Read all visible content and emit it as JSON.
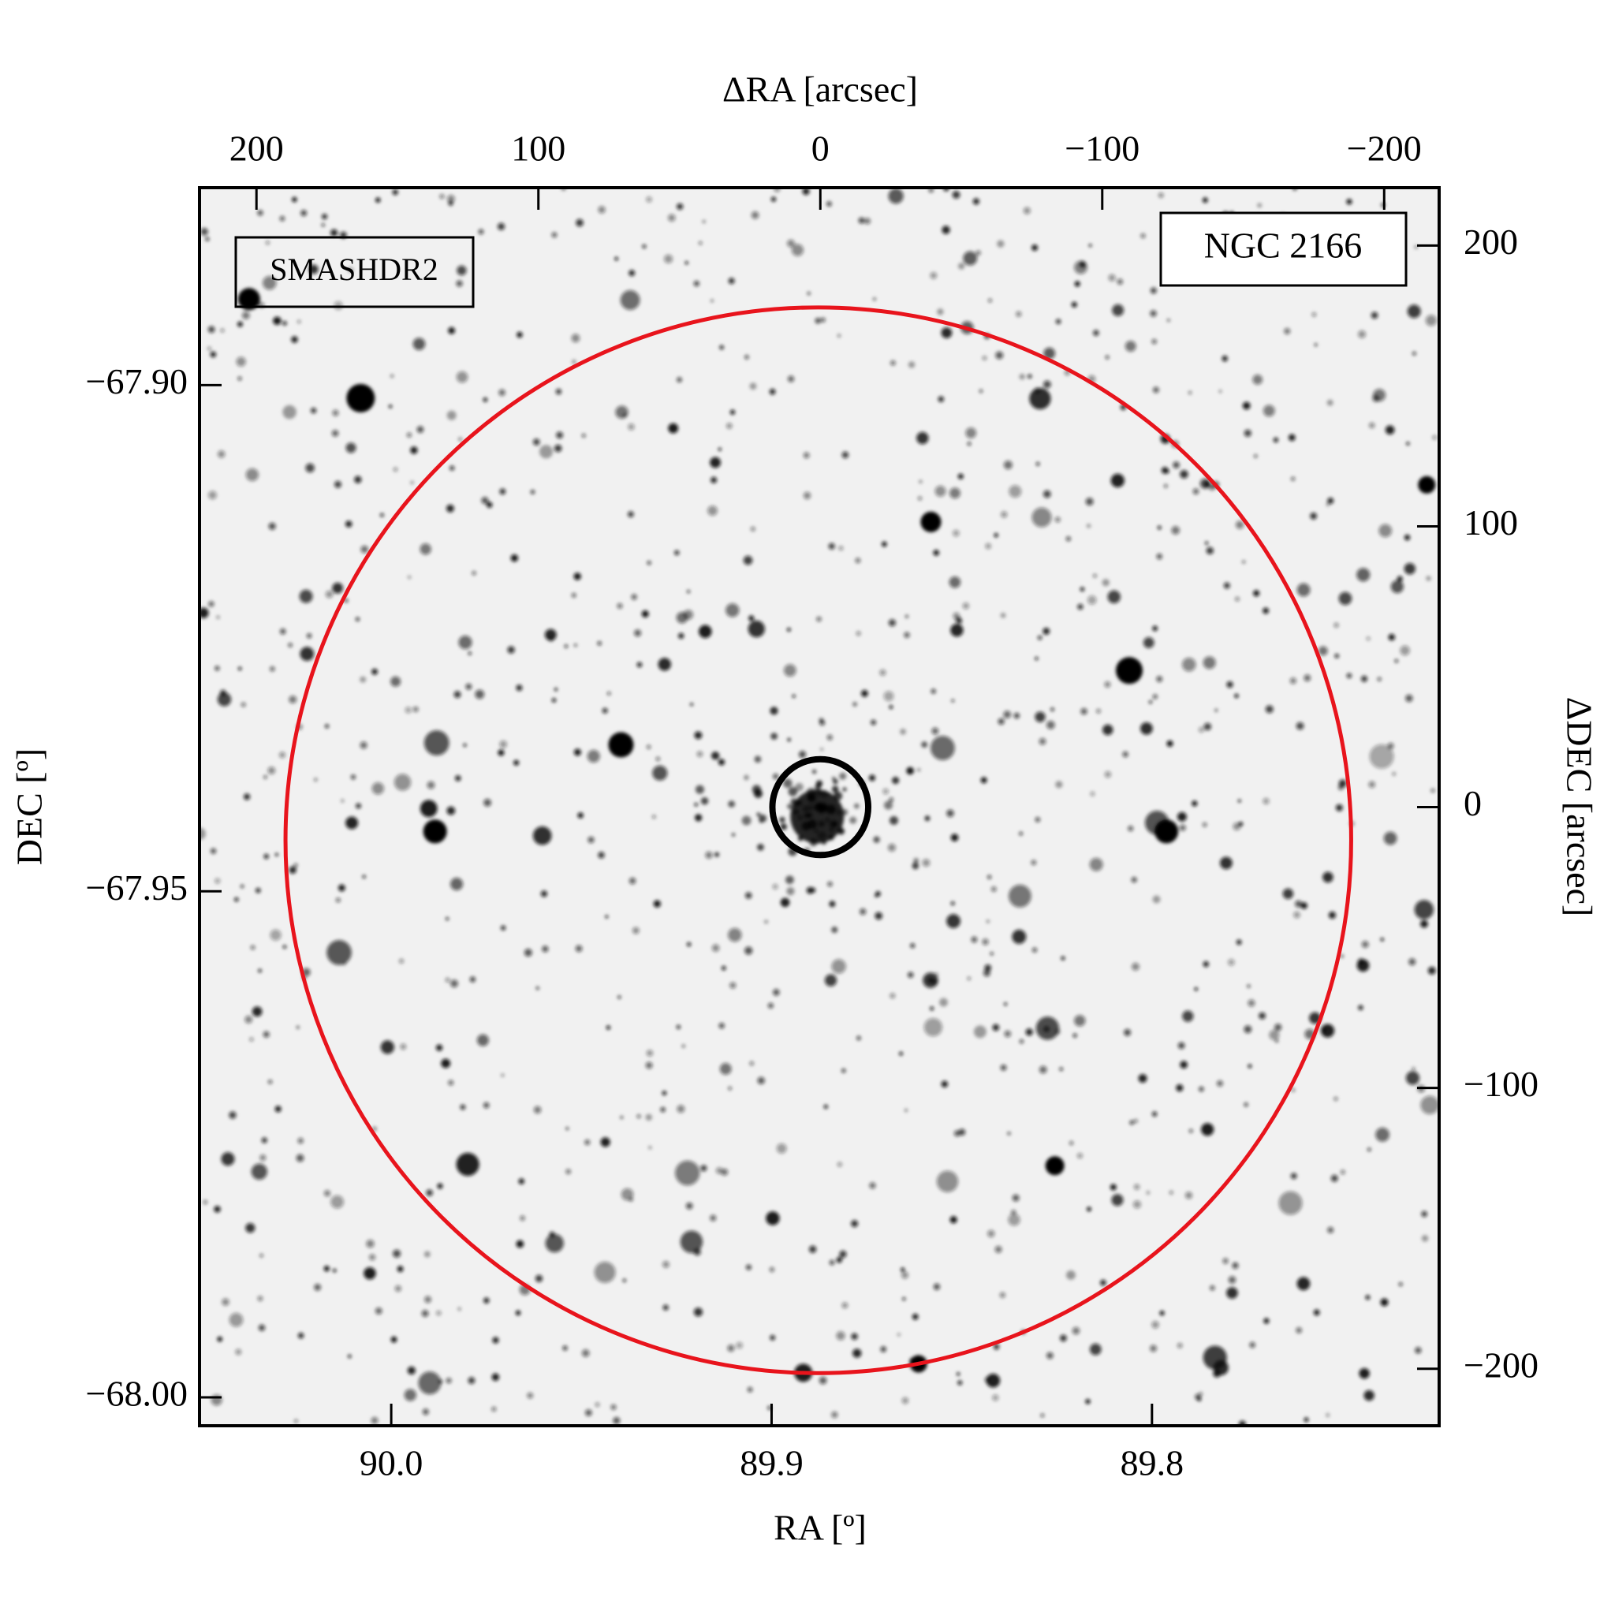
{
  "chart_data": {
    "type": "image",
    "x_label": "RA [º]",
    "xlim": [
      90.0504,
      89.7245
    ],
    "xticks": [
      {
        "value": 90.0,
        "label": "90.0"
      },
      89.9,
      89.8
    ],
    "y_label": "DEC [º]",
    "ylim": [
      -68.0028,
      -67.8805
    ],
    "yticks": [
      {
        "value": -67.9,
        "label": "−67.90"
      },
      {
        "value": -67.95,
        "label": "−67.95"
      },
      {
        "value": -68.0,
        "label": "−68.00"
      }
    ],
    "x2_label": "ΔRA [arcsec]",
    "x2lim": [
      220.2,
      -219.5
    ],
    "x2ticks": [
      200,
      100,
      0,
      {
        "value": -100,
        "label": "−100"
      },
      {
        "value": -200,
        "label": "−200"
      }
    ],
    "y2_label": "ΔDEC [arcsec]",
    "y2lim": [
      -220.3,
      220.6
    ],
    "y2ticks": [
      200,
      100,
      0,
      {
        "value": -100,
        "label": "−100"
      },
      {
        "value": -200,
        "label": "−200"
      }
    ],
    "annotations": [
      {
        "text": "SMASHDR2",
        "color": "#e8141c"
      },
      {
        "text": "NGC 2166",
        "color": "#000000"
      }
    ],
    "circles": [
      {
        "x": 0.7,
        "y": -11.8,
        "r": 189,
        "color": "#e8141c"
      },
      {
        "x": 0,
        "y": 0,
        "r": 17,
        "color": "#000000"
      }
    ]
  }
}
